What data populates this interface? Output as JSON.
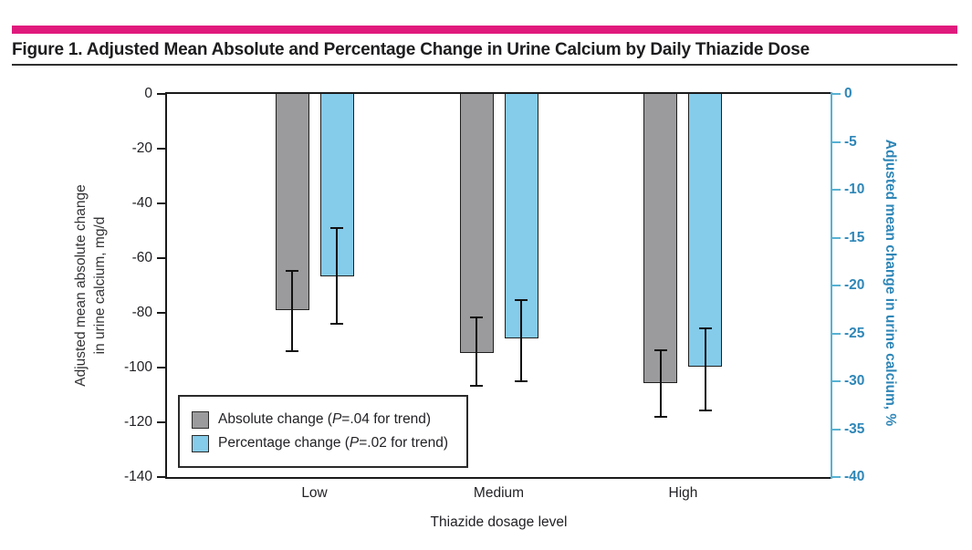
{
  "figure": {
    "title": "Figure 1. Adjusted Mean Absolute and Percentage Change in Urine Calcium by Daily Thiazide Dose"
  },
  "colors": {
    "accent_magenta": "#e01a7d",
    "bar_gray": "#9b9b9d",
    "bar_blue": "#85cbea",
    "right_axis_text": "#2e86b7",
    "right_axis_line": "#56b2d3",
    "axis_black": "#1a1a1a"
  },
  "chart_data": {
    "type": "bar",
    "categories": [
      "Low",
      "Medium",
      "High"
    ],
    "xlabel": "Thiazide dosage level",
    "ylabel_left_lines": [
      "Adjusted mean absolute change",
      "in urine calcium, mg/d"
    ],
    "ylabel_right": "Adjusted mean change in urine calcium, %",
    "ylim_left": [
      0,
      -140
    ],
    "ylim_right": [
      0,
      -40
    ],
    "yticks_left": [
      0,
      -20,
      -40,
      -60,
      -80,
      -100,
      -120,
      -140
    ],
    "yticks_right": [
      0,
      -5,
      -10,
      -15,
      -20,
      -25,
      -30,
      -35,
      -40
    ],
    "grid": false,
    "legend_position": "lower left",
    "series": [
      {
        "name": "Absolute change",
        "axis": "left",
        "color": "#9b9b9d",
        "values": [
          -79,
          -94.5,
          -105.5
        ],
        "ci_high": [
          -64.5,
          -81.5,
          -93.5
        ],
        "ci_low": [
          -94,
          -106.5,
          -118
        ],
        "p_for_trend": ".04"
      },
      {
        "name": "Percentage change",
        "axis": "right",
        "color": "#85cbea",
        "values": [
          -19,
          -25.5,
          -28.5
        ],
        "ci_high": [
          -14,
          -21.5,
          -24.5
        ],
        "ci_low": [
          -24,
          -30,
          -33
        ],
        "p_for_trend": ".02"
      }
    ],
    "legend": {
      "items": [
        {
          "swatch_color": "#9b9b9d",
          "before": "Absolute change (",
          "p": "P",
          "after": "=.04 for trend)"
        },
        {
          "swatch_color": "#85cbea",
          "before": "Percentage change (",
          "p": "P",
          "after": "=.02 for trend)"
        }
      ]
    }
  }
}
